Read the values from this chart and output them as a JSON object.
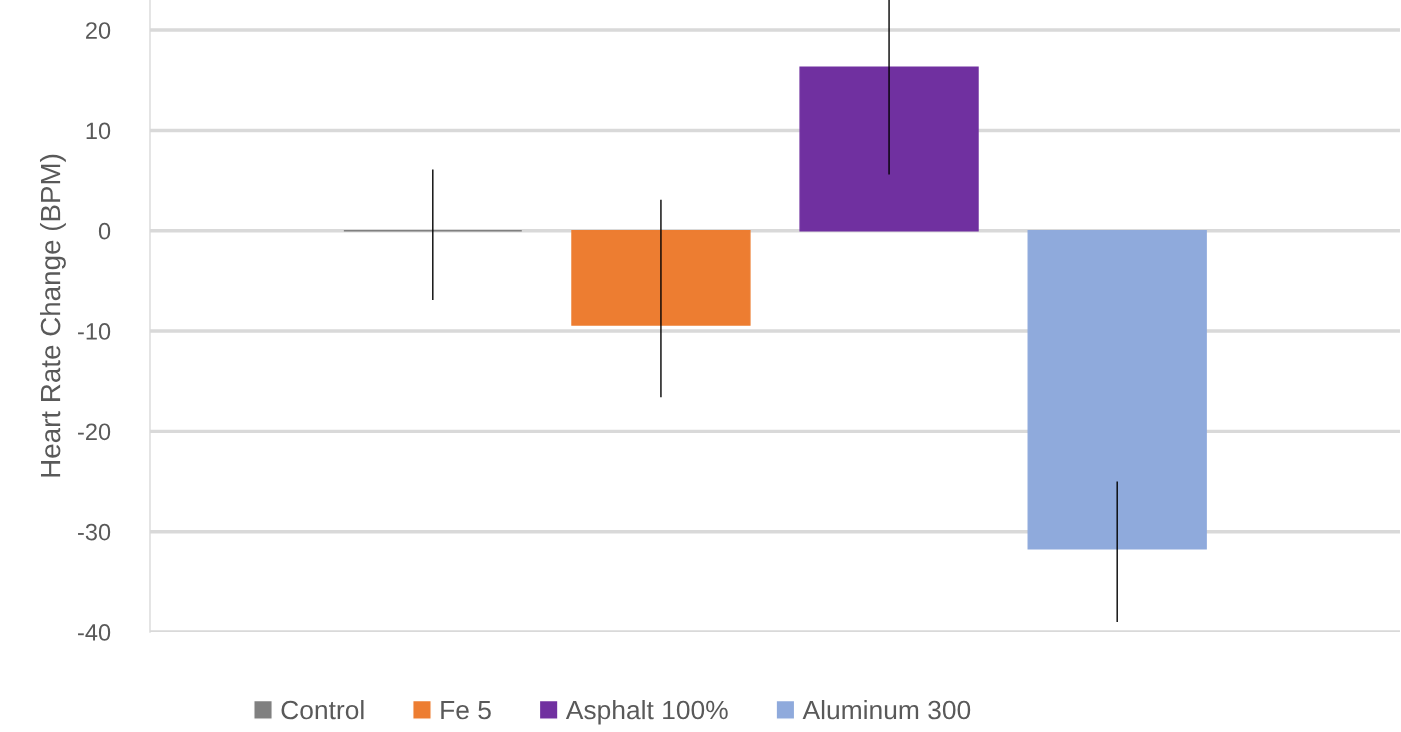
{
  "chart_data": {
    "type": "bar",
    "ylabel": "Heart Rate Change (BPM)",
    "categories": [
      null
    ],
    "series": [
      {
        "name": "Control",
        "color": "#808080",
        "values": [
          0
        ],
        "errors": [
          [
            -6.9,
            6.1
          ]
        ]
      },
      {
        "name": "Fe 5",
        "color": "#ed7d31",
        "values": [
          -9.4
        ],
        "errors": [
          [
            -16.6,
            3.1
          ]
        ]
      },
      {
        "name": "Asphalt 100%",
        "color": "#7030a0",
        "values": [
          16.3
        ],
        "errors": [
          [
            5.6,
            23
          ]
        ]
      },
      {
        "name": "Aluminum 300",
        "color": "#8faadc",
        "values": [
          -31.7
        ],
        "errors": [
          [
            -39.0,
            -25.0
          ]
        ]
      }
    ],
    "ylim": [
      -40,
      23
    ],
    "yticks": [
      -40,
      -30,
      -20,
      -10,
      0,
      10,
      20
    ],
    "grid": "y",
    "legend": "bottom",
    "tick_labels": "y"
  }
}
